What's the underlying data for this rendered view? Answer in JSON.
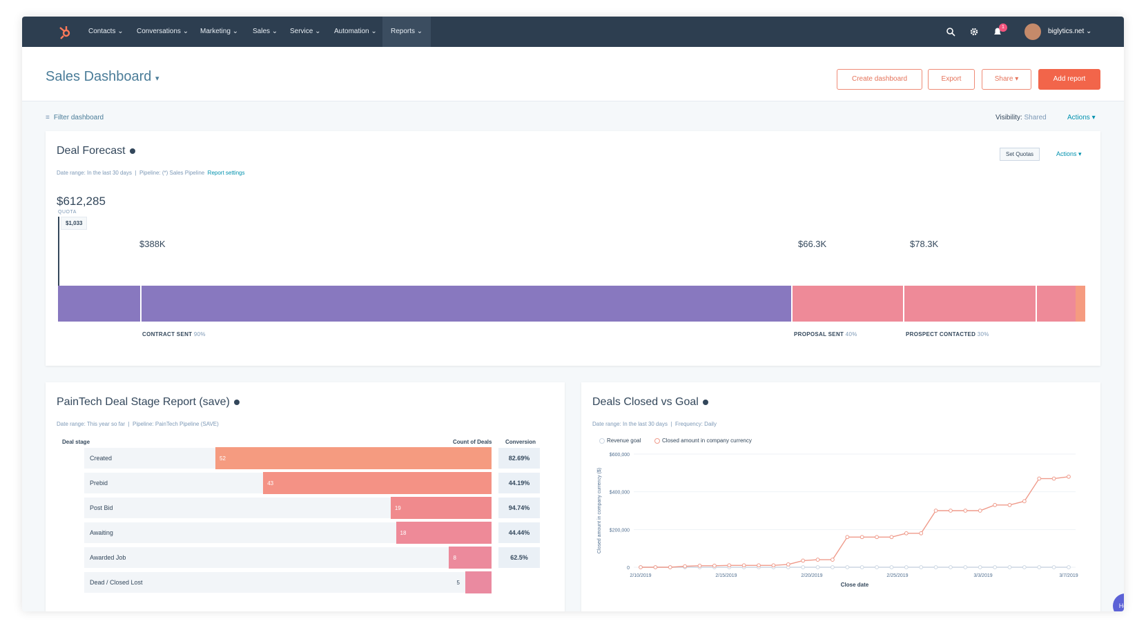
{
  "nav": {
    "items": [
      "Contacts",
      "Conversations",
      "Marketing",
      "Sales",
      "Service",
      "Automation",
      "Reports"
    ],
    "account": "biglytics.net",
    "notification_count": "1"
  },
  "header": {
    "title": "Sales Dashboard",
    "buttons": {
      "create": "Create dashboard",
      "export": "Export",
      "share": "Share",
      "add": "Add report"
    }
  },
  "filterbar": {
    "filter": "Filter dashboard",
    "visibility_label": "Visibility:",
    "visibility_value": "Shared",
    "actions": "Actions"
  },
  "forecast": {
    "title": "Deal Forecast",
    "meta_range": "Date range: In the last 30 days",
    "meta_pipeline": "Pipeline: (*) Sales Pipeline",
    "meta_link": "Report settings",
    "set_quotas": "Set Quotas",
    "actions": "Actions",
    "total": "$612,285",
    "quota_label": "QUOTA",
    "quota_value": "$1,033",
    "segments": [
      {
        "amount": "$388K",
        "stage": "CONTRACT SENT",
        "pct": "90%"
      },
      {
        "amount": "$66.3K",
        "stage": "PROPOSAL SENT",
        "pct": "40%"
      },
      {
        "amount": "$78.3K",
        "stage": "PROSPECT CONTACTED",
        "pct": "30%"
      }
    ],
    "colors": {
      "purple": "#8878bf",
      "pink": "#ee8a98",
      "orange": "#f59b80"
    }
  },
  "stage_report": {
    "title": "PainTech Deal Stage Report (save)",
    "meta_range": "Date range: This year so far",
    "meta_pipeline": "Pipeline: PainTech Pipeline (SAVE)",
    "headers": {
      "stage": "Deal stage",
      "count": "Count of Deals",
      "conversion": "Conversion"
    },
    "rows": [
      {
        "stage": "Created",
        "count": "52",
        "count_num": 52,
        "conversion": "82.69%"
      },
      {
        "stage": "Prebid",
        "count": "43",
        "count_num": 43,
        "conversion": "44.19%"
      },
      {
        "stage": "Post Bid",
        "count": "19",
        "count_num": 19,
        "conversion": "94.74%"
      },
      {
        "stage": "Awaiting",
        "count": "18",
        "count_num": 18,
        "conversion": "44.44%"
      },
      {
        "stage": "Awarded Job",
        "count": "8",
        "count_num": 8,
        "conversion": "62.5%"
      },
      {
        "stage": "Dead / Closed Lost",
        "count": "5",
        "count_num": 5,
        "conversion": ""
      }
    ]
  },
  "deals_closed": {
    "title": "Deals Closed vs Goal",
    "meta_range": "Date range: In the last 30 days",
    "meta_freq": "Frequency: Daily",
    "legend": [
      "Revenue goal",
      "Closed amount in company currency"
    ]
  },
  "help": "Help",
  "chart_data": {
    "type": "line",
    "title": "Deals Closed vs Goal",
    "xlabel": "Close date",
    "ylabel": "Closed amount in company currency ($)",
    "x_ticks": [
      "2/10/2019",
      "2/15/2019",
      "2/20/2019",
      "2/25/2019",
      "3/3/2019",
      "3/7/2019"
    ],
    "y_ticks": [
      "0",
      "$200,000",
      "$400,000",
      "$600,000"
    ],
    "ylim": [
      0,
      600000
    ],
    "n_points": 30,
    "series": [
      {
        "name": "Revenue goal",
        "values": [
          0,
          0,
          0,
          0,
          0,
          0,
          0,
          0,
          0,
          0,
          0,
          0,
          0,
          0,
          0,
          0,
          0,
          0,
          0,
          0,
          0,
          0,
          0,
          0,
          0,
          0,
          0,
          0,
          0,
          0
        ]
      },
      {
        "name": "Closed amount in company currency",
        "values": [
          0,
          0,
          0,
          5000,
          8000,
          8000,
          10000,
          10000,
          10000,
          10000,
          15000,
          35000,
          40000,
          40000,
          160000,
          160000,
          160000,
          160000,
          180000,
          180000,
          300000,
          300000,
          300000,
          300000,
          330000,
          330000,
          350000,
          470000,
          470000,
          480000
        ]
      }
    ]
  }
}
